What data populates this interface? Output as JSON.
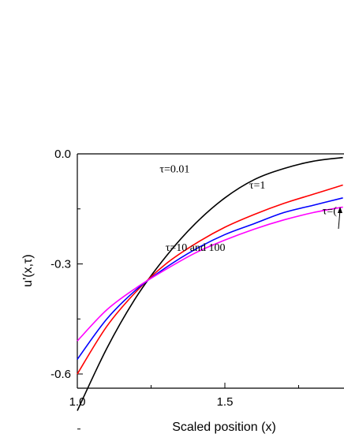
{
  "chart_data": {
    "type": "line",
    "xlabel": "Scaled position (x)",
    "ylabel": "u'(x,τ)",
    "xlim": [
      1.0,
      1.9
    ],
    "ylim": [
      -0.8,
      0.0
    ],
    "xticks": [
      1.0,
      1.5
    ],
    "xtick_labels": [
      "1.0",
      "1.5"
    ],
    "yticks": [
      0.0,
      -0.3,
      -0.6
    ],
    "ytick_labels": [
      "0.0",
      "-0.3",
      "-0.6"
    ],
    "grid": false,
    "series": [
      {
        "color": "#000000",
        "x": [
          1.0,
          1.1,
          1.2,
          1.3,
          1.4,
          1.5,
          1.6,
          1.7,
          1.8,
          1.9
        ],
        "y": [
          -0.7,
          -0.53,
          -0.39,
          -0.28,
          -0.19,
          -0.12,
          -0.07,
          -0.04,
          -0.02,
          -0.01
        ]
      },
      {
        "color": "#ff0000",
        "x": [
          1.0,
          1.1,
          1.2,
          1.3,
          1.4,
          1.5,
          1.6,
          1.7,
          1.8,
          1.9
        ],
        "y": [
          -0.6,
          -0.47,
          -0.375,
          -0.3,
          -0.245,
          -0.2,
          -0.165,
          -0.135,
          -0.11,
          -0.085
        ]
      },
      {
        "color": "#0000ff",
        "x": [
          1.0,
          1.1,
          1.2,
          1.3,
          1.4,
          1.5,
          1.6,
          1.7,
          1.8,
          1.9
        ],
        "y": [
          -0.56,
          -0.45,
          -0.37,
          -0.31,
          -0.26,
          -0.22,
          -0.19,
          -0.16,
          -0.14,
          -0.12
        ]
      },
      {
        "color": "#ff00ff",
        "x": [
          1.0,
          1.1,
          1.2,
          1.3,
          1.4,
          1.5,
          1.6,
          1.7,
          1.8,
          1.9
        ],
        "y": [
          -0.51,
          -0.425,
          -0.365,
          -0.315,
          -0.27,
          -0.235,
          -0.205,
          -0.18,
          -0.16,
          -0.145
        ]
      }
    ],
    "annotations": [
      {
        "text": "τ=0.01",
        "x": 1.33,
        "y": -0.05
      },
      {
        "text": "τ=1",
        "x": 1.61,
        "y": -0.095
      },
      {
        "text": "τ=10 and 100",
        "x": 1.4,
        "y": -0.265
      },
      {
        "text": "τ=(",
        "x": 1.855,
        "y": -0.165
      }
    ]
  }
}
